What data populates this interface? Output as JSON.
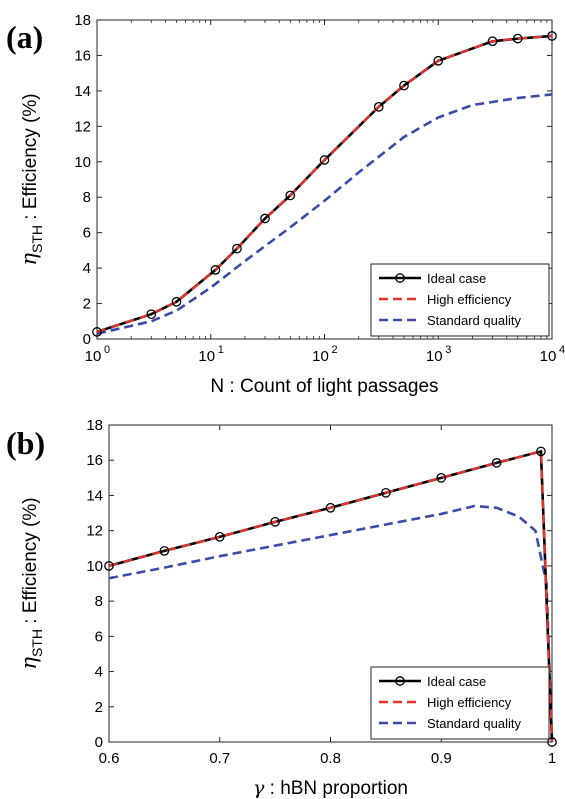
{
  "figure": {
    "panels": [
      {
        "label": "(a)",
        "ylabel_main": "η",
        "ylabel_sub": "STH",
        "ylabel_rest": " : Efficiency (%)",
        "xlabel": "N : Count of light passages"
      },
      {
        "label": "(b)",
        "ylabel_main": "η",
        "ylabel_sub": "STH",
        "ylabel_rest": " : Efficiency (%)",
        "xlabel_greek": "γ",
        "xlabel_rest": " : hBN proportion"
      }
    ]
  },
  "chart_data": [
    {
      "type": "line",
      "panel": "(a)",
      "xlabel": "N : Count of light passages",
      "ylabel": "ηSTH : Efficiency (%)",
      "xscale": "log",
      "xlim": [
        1,
        10000
      ],
      "ylim": [
        0,
        18
      ],
      "x_ticks": [
        "10^0",
        "10^1",
        "10^2",
        "10^3",
        "10^4"
      ],
      "y_ticks": [
        "0",
        "2",
        "4",
        "6",
        "8",
        "10",
        "12",
        "14",
        "16",
        "18"
      ],
      "legend_position": "bottom-right",
      "series": [
        {
          "name": "Ideal case",
          "color": "#000000",
          "style": "solid-circle-markers",
          "x": [
            1,
            3,
            5,
            11,
            17,
            30,
            50,
            100,
            300,
            500,
            1000,
            3000,
            5000,
            10000
          ],
          "y": [
            0.4,
            1.4,
            2.1,
            3.9,
            5.1,
            6.8,
            8.1,
            10.1,
            13.1,
            14.3,
            15.7,
            16.8,
            16.95,
            17.1
          ]
        },
        {
          "name": "High efficiency",
          "color": "#e8332a",
          "style": "dashed",
          "x": [
            1,
            3,
            5,
            11,
            17,
            30,
            50,
            100,
            300,
            500,
            1000,
            3000,
            5000,
            10000
          ],
          "y": [
            0.4,
            1.4,
            2.1,
            3.9,
            5.1,
            6.8,
            8.1,
            10.1,
            13.1,
            14.3,
            15.7,
            16.8,
            16.95,
            17.1
          ]
        },
        {
          "name": "Standard quality",
          "color": "#3a4ba8",
          "style": "dashed",
          "x": [
            1,
            3,
            5,
            10,
            20,
            50,
            100,
            200,
            500,
            1000,
            2000,
            5000,
            10000
          ],
          "y": [
            0.3,
            1.0,
            1.6,
            2.9,
            4.4,
            6.3,
            7.8,
            9.4,
            11.4,
            12.5,
            13.2,
            13.6,
            13.8
          ]
        }
      ]
    },
    {
      "type": "line",
      "panel": "(b)",
      "xlabel": "γ : hBN proportion",
      "ylabel": "ηSTH : Efficiency (%)",
      "xlim": [
        0.6,
        1.0
      ],
      "ylim": [
        0,
        18
      ],
      "x_ticks": [
        "0.6",
        "0.7",
        "0.8",
        "0.9",
        "1"
      ],
      "y_ticks": [
        "0",
        "2",
        "4",
        "6",
        "8",
        "10",
        "12",
        "14",
        "16",
        "18"
      ],
      "legend_position": "bottom-right",
      "series": [
        {
          "name": "Ideal case",
          "color": "#000000",
          "style": "solid-circle-markers",
          "x": [
            0.6,
            0.65,
            0.7,
            0.75,
            0.8,
            0.85,
            0.9,
            0.95,
            0.99,
            1.0
          ],
          "y": [
            10.0,
            10.85,
            11.65,
            12.5,
            13.3,
            14.15,
            15.0,
            15.85,
            16.5,
            0
          ]
        },
        {
          "name": "High efficiency",
          "color": "#e8332a",
          "style": "dashed",
          "x": [
            0.6,
            0.65,
            0.7,
            0.75,
            0.8,
            0.85,
            0.9,
            0.95,
            0.99,
            1.0
          ],
          "y": [
            10.0,
            10.85,
            11.65,
            12.5,
            13.3,
            14.15,
            15.0,
            15.85,
            16.5,
            0
          ]
        },
        {
          "name": "Standard quality",
          "color": "#3a4ba8",
          "style": "dashed",
          "x": [
            0.6,
            0.65,
            0.7,
            0.75,
            0.8,
            0.85,
            0.9,
            0.93,
            0.95,
            0.97,
            0.985,
            0.995,
            1.0
          ],
          "y": [
            9.3,
            9.9,
            10.55,
            11.15,
            11.75,
            12.35,
            12.95,
            13.4,
            13.3,
            12.8,
            12.0,
            9.0,
            0
          ]
        }
      ]
    }
  ]
}
